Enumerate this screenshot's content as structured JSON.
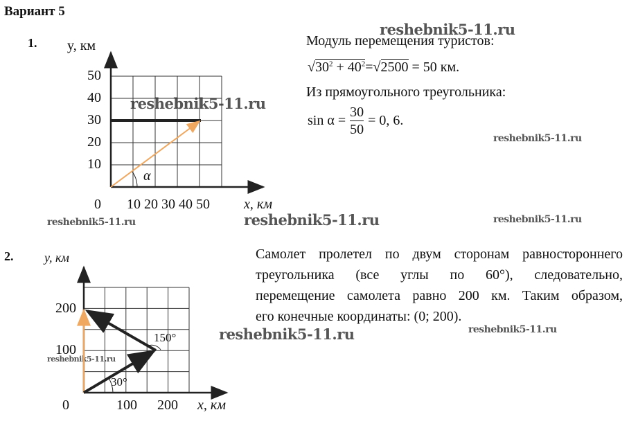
{
  "heading": "Вариант 5",
  "watermark": "reshebnik5-11.ru",
  "problem1": {
    "number": "1.",
    "graph": {
      "y_label": "y, км",
      "x_label": "x, км",
      "origin": "0",
      "y_ticks": [
        "10",
        "20",
        "30",
        "40",
        "50"
      ],
      "x_ticks": "10 20 30 40 50",
      "angle_label": "α",
      "endpoint_km": [
        40,
        30
      ],
      "corner_km": [
        0,
        30
      ]
    },
    "lines": [
      "Модуль перемещения туристов:",
      "Из прямоугольного треугольника:"
    ],
    "formula1": {
      "sqrt_a": "30",
      "sqrt_b": "40",
      "exp": "2",
      "plus": "+",
      "eq": "=",
      "sqrt2": "2500",
      "result": "= 50 км."
    },
    "formula2": {
      "lhs": "sin α =",
      "num": "30",
      "den": "50",
      "result": "= 0, 6."
    }
  },
  "problem2": {
    "number": "2.",
    "graph": {
      "y_label": "y, км",
      "x_label": "x, км",
      "origin": "0",
      "y_ticks": [
        "100",
        "200"
      ],
      "x_ticks": [
        "100",
        "200"
      ],
      "angle1": "30°",
      "angle2": "150°"
    },
    "text": [
      "Самолет пролетел по двум сторонам равностороннего",
      "треугольника (все углы по 60°), следовательно,",
      "перемещение самолета равно 200 км. Таким образом,",
      "его конечные координаты: (0; 200)."
    ]
  },
  "colors": {
    "axis": "#222222",
    "grid": "#333333",
    "orange": "#f0a860",
    "watermark": "#555555"
  }
}
